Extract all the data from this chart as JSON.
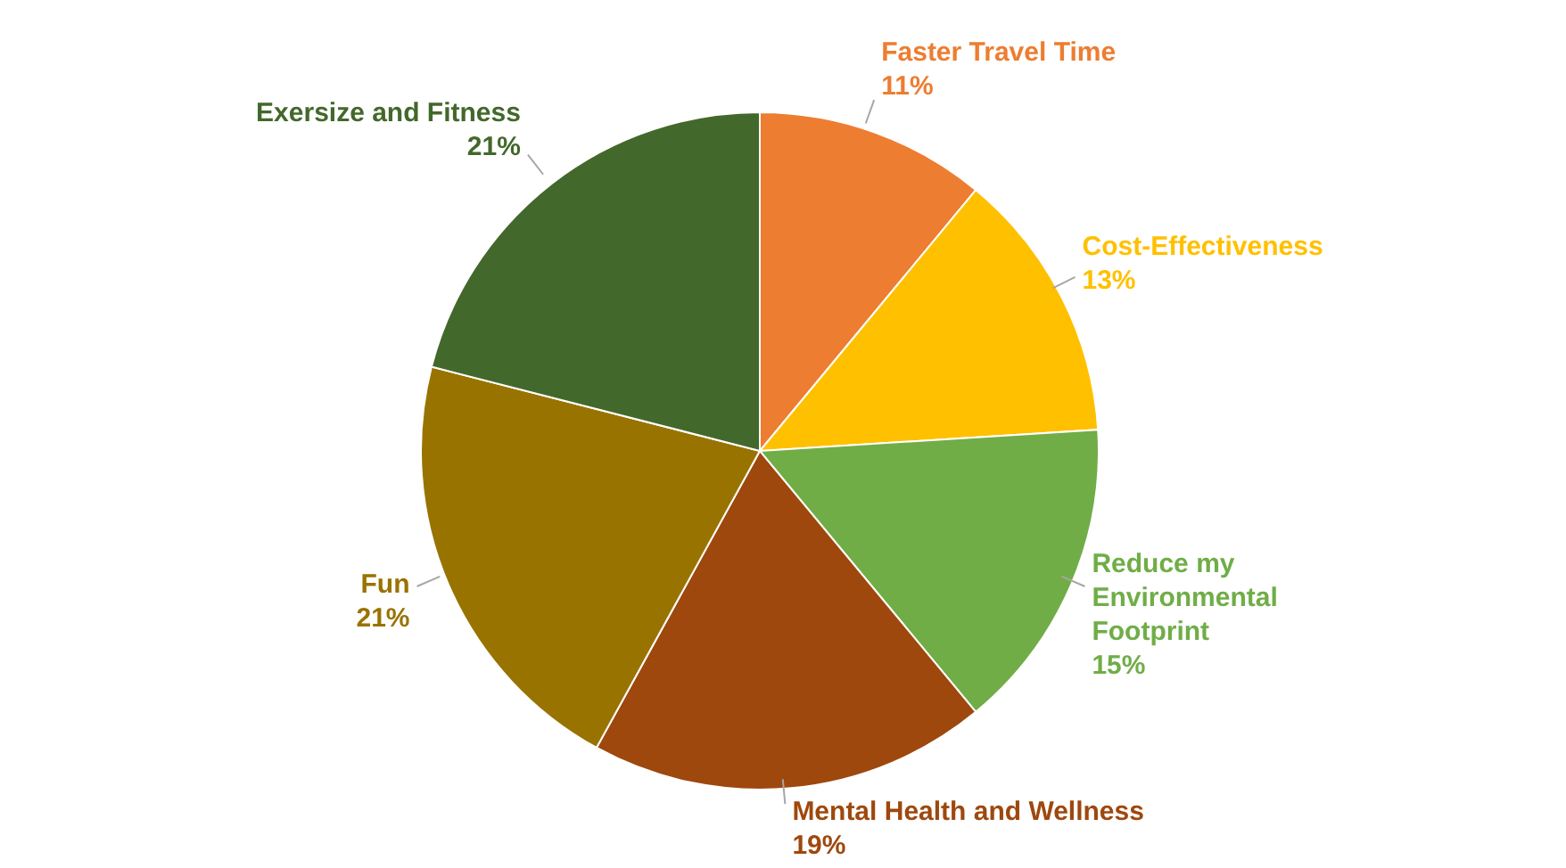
{
  "chart_data": {
    "type": "pie",
    "categories": [
      "Faster Travel Time",
      "Cost-Effectiveness",
      "Reduce my Environmental Footprint",
      "Mental Health and Wellness",
      "Fun",
      "Exersize and Fitness"
    ],
    "values": [
      11,
      13,
      15,
      19,
      21,
      21
    ],
    "value_labels": [
      "11%",
      "13%",
      "15%",
      "19%",
      "21%",
      "21%"
    ],
    "colors": [
      "#ed7d31",
      "#ffc000",
      "#70ad47",
      "#9e480e",
      "#997300",
      "#43682b"
    ]
  }
}
